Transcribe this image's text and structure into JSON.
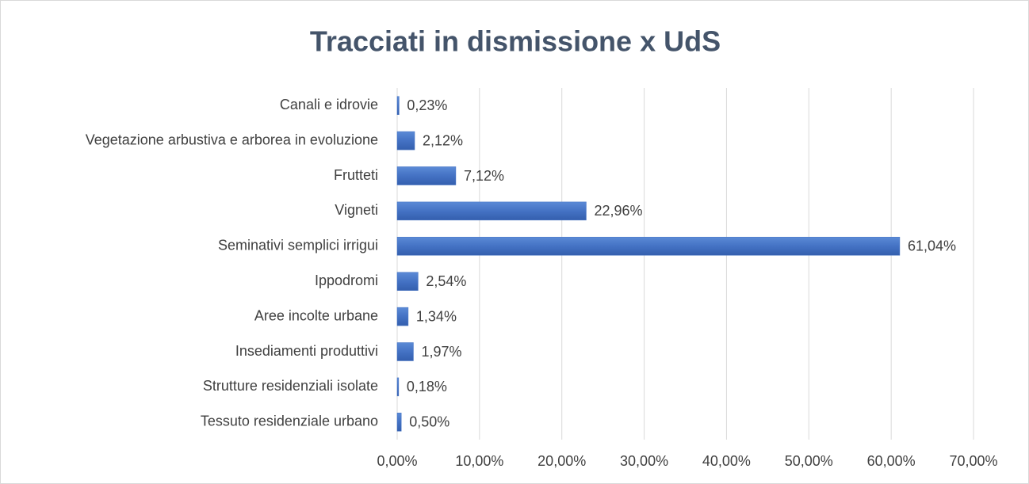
{
  "chart_data": {
    "type": "bar",
    "orientation": "horizontal",
    "title": "Tracciati in dismissione x UdS",
    "categories": [
      "Canali e idrovie",
      "Vegetazione arbustiva e arborea in evoluzione",
      "Frutteti",
      "Vigneti",
      "Seminativi semplici irrigui",
      "Ippodromi",
      "Aree incolte urbane",
      "Insediamenti produttivi",
      "Strutture residenziali isolate",
      "Tessuto residenziale urbano"
    ],
    "values": [
      0.23,
      2.12,
      7.12,
      22.96,
      61.04,
      2.54,
      1.34,
      1.97,
      0.18,
      0.5
    ],
    "value_labels": [
      "0,23%",
      "2,12%",
      "7,12%",
      "22,96%",
      "61,04%",
      "2,54%",
      "1,34%",
      "1,97%",
      "0,18%",
      "0,50%"
    ],
    "color": "#4472c4",
    "xlim": [
      0,
      70
    ],
    "xticks": [
      {
        "value": 0,
        "label": "0,00%"
      },
      {
        "value": 10,
        "label": "10,00%"
      },
      {
        "value": 20,
        "label": "20,00%"
      },
      {
        "value": 30,
        "label": "30,00%"
      },
      {
        "value": 40,
        "label": "40,00%"
      },
      {
        "value": 50,
        "label": "50,00%"
      },
      {
        "value": 60,
        "label": "60,00%"
      },
      {
        "value": 70,
        "label": "70,00%"
      }
    ],
    "grid": true
  }
}
